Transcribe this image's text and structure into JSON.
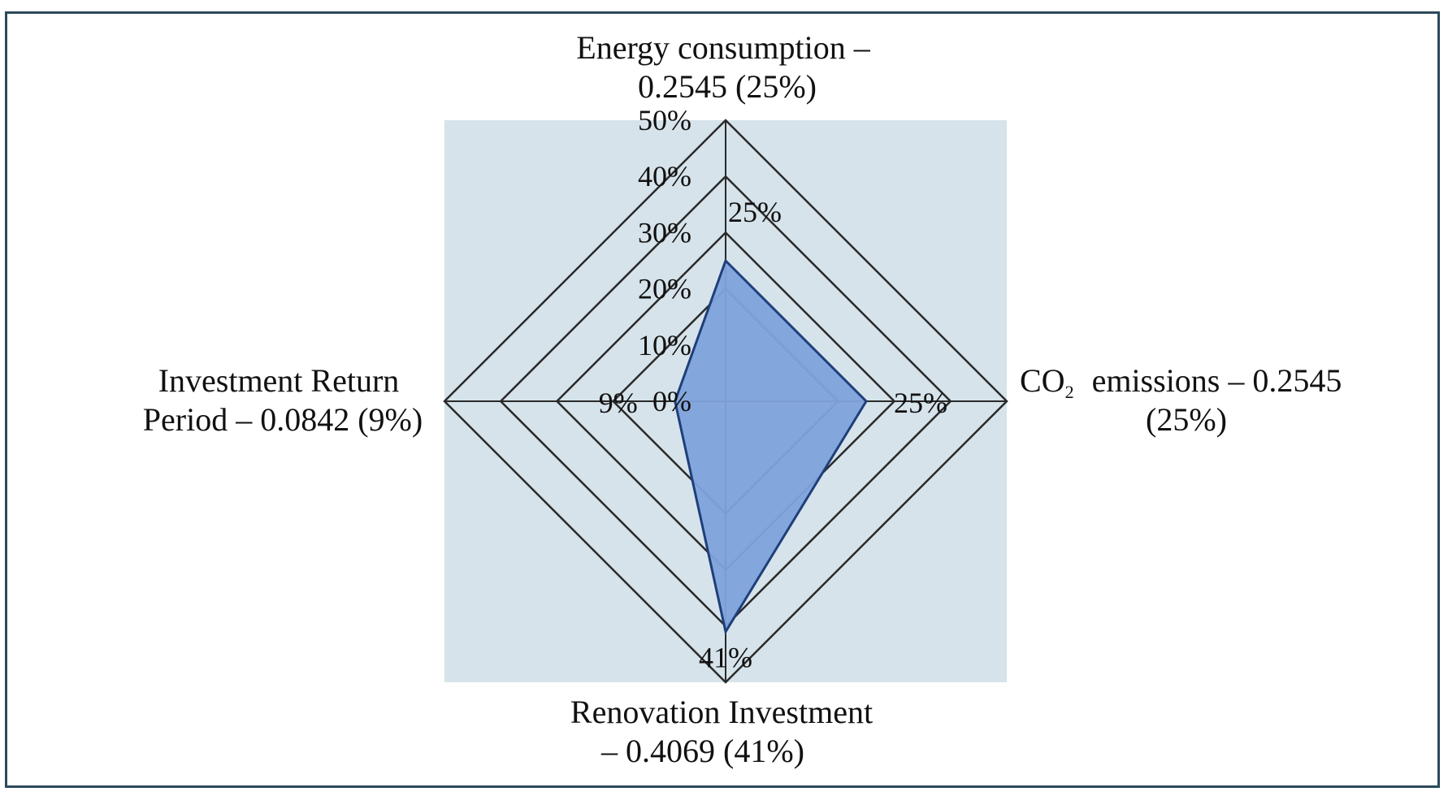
{
  "chart_data": {
    "type": "radar",
    "categories": [
      "Energy consumption",
      "CO2 emissions",
      "Renovation Investment",
      "Investment Return Period"
    ],
    "series": [
      {
        "values": [
          25,
          25,
          41,
          9
        ],
        "weights": [
          0.2545,
          0.2545,
          0.4069,
          0.0842
        ]
      }
    ],
    "axis_labels": {
      "top": [
        "Energy consumption –",
        "0.2545 (25%)"
      ],
      "right_line1_prefix": "CO",
      "right_line1_sub": "2",
      "right_line1_suffix": "emissions – 0.2545",
      "right_line2": "(25%)",
      "bottom": [
        "Renovation Investment",
        "– 0.4069 (41%)"
      ],
      "left": [
        "Investment Return",
        "Period – 0.0842 (9%)"
      ]
    },
    "data_labels": [
      "25%",
      "25%",
      "41%",
      "9%"
    ],
    "radial_ticks": [
      "0%",
      "10%",
      "20%",
      "30%",
      "40%",
      "50%"
    ],
    "rlim": [
      0,
      50
    ],
    "grid_rings": [
      20,
      30,
      40,
      50
    ],
    "colors": {
      "plot_background": "#d6e3ea",
      "fill": "#7ea3dc",
      "stroke": "#1f3f7a",
      "grid": "#2a2a2a",
      "frame": "#2c4a5a"
    }
  }
}
